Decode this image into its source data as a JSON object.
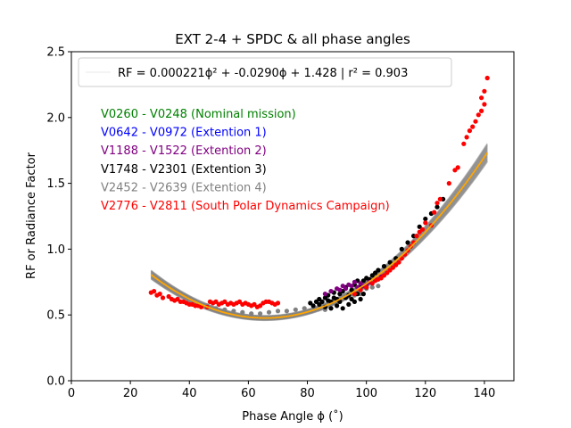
{
  "chart_data": {
    "type": "scatter",
    "title": "EXT 2-4 + SPDC & all phase angles",
    "xlabel": "Phase Angle ϕ (˚)",
    "ylabel": "RF or Radiance Factor",
    "xlim": [
      0,
      150
    ],
    "ylim": [
      0.0,
      2.5
    ],
    "xticks": [
      0,
      20,
      40,
      60,
      80,
      100,
      120,
      140
    ],
    "xtick_labels": [
      "0",
      "20",
      "40",
      "60",
      "80",
      "100",
      "120",
      "140"
    ],
    "yticks": [
      0.0,
      0.5,
      1.0,
      1.5,
      2.0,
      2.5
    ],
    "ytick_labels": [
      "0.0",
      "0.5",
      "1.0",
      "1.5",
      "2.0",
      "2.5"
    ],
    "grid": false,
    "legend": {
      "placement": "top",
      "text": "RF = 0.000221ϕ² + -0.0290ϕ +   1.428  |  r² = 0.903"
    },
    "fit": {
      "name": "RF = 0.000221ϕ² + -0.0290ϕ +   1.428",
      "coefficients": [
        0.000221,
        -0.029,
        1.428
      ],
      "r2": 0.903,
      "x_range": [
        27,
        141
      ],
      "color": "#ffa500",
      "band_color": "#808080"
    },
    "annotations": [
      {
        "text": "V0260 - V0248 (Nominal mission)",
        "color": "#008000"
      },
      {
        "text": "V0642 - V0972 (Extention 1)",
        "color": "#0000ff"
      },
      {
        "text": "V1188 - V1522 (Extention 2)",
        "color": "#800080"
      },
      {
        "text": "V1748 - V2301 (Extention 3)",
        "color": "#000000"
      },
      {
        "text": "V2452 - V2639 (Extention 4)",
        "color": "#808080"
      },
      {
        "text": "V2776 - V2811 (South Polar Dynamics Campaign)",
        "color": "#ff0000"
      }
    ],
    "series": [
      {
        "color": "#808080",
        "points": [
          [
            46,
            0.57
          ],
          [
            49,
            0.55
          ],
          [
            52,
            0.54
          ],
          [
            55,
            0.53
          ],
          [
            58,
            0.52
          ],
          [
            61,
            0.51
          ],
          [
            64,
            0.51
          ],
          [
            67,
            0.52
          ],
          [
            70,
            0.53
          ],
          [
            73,
            0.53
          ],
          [
            76,
            0.54
          ],
          [
            79,
            0.55
          ],
          [
            81,
            0.53
          ],
          [
            83,
            0.55
          ],
          [
            85,
            0.57
          ],
          [
            86,
            0.54
          ],
          [
            88,
            0.6
          ],
          [
            90,
            0.59
          ],
          [
            92,
            0.62
          ],
          [
            94,
            0.64
          ],
          [
            96,
            0.65
          ],
          [
            98,
            0.66
          ],
          [
            100,
            0.7
          ],
          [
            102,
            0.71
          ],
          [
            104,
            0.72
          ]
        ]
      },
      {
        "color": "#000000",
        "points": [
          [
            81,
            0.59
          ],
          [
            82,
            0.57
          ],
          [
            83,
            0.6
          ],
          [
            84,
            0.58
          ],
          [
            84,
            0.62
          ],
          [
            85,
            0.6
          ],
          [
            86,
            0.63
          ],
          [
            86,
            0.56
          ],
          [
            87,
            0.61
          ],
          [
            87,
            0.65
          ],
          [
            88,
            0.6
          ],
          [
            88,
            0.55
          ],
          [
            89,
            0.63
          ],
          [
            89,
            0.67
          ],
          [
            90,
            0.62
          ],
          [
            90,
            0.57
          ],
          [
            91,
            0.66
          ],
          [
            91,
            0.6
          ],
          [
            92,
            0.68
          ],
          [
            92,
            0.55
          ],
          [
            93,
            0.63
          ],
          [
            93,
            0.71
          ],
          [
            94,
            0.65
          ],
          [
            94,
            0.58
          ],
          [
            95,
            0.69
          ],
          [
            95,
            0.62
          ],
          [
            96,
            0.73
          ],
          [
            96,
            0.6
          ],
          [
            97,
            0.66
          ],
          [
            97,
            0.76
          ],
          [
            98,
            0.71
          ],
          [
            98,
            0.62
          ],
          [
            99,
            0.76
          ],
          [
            99,
            0.66
          ],
          [
            100,
            0.78
          ],
          [
            100,
            0.71
          ],
          [
            101,
            0.77
          ],
          [
            102,
            0.8
          ],
          [
            103,
            0.82
          ],
          [
            104,
            0.84
          ],
          [
            106,
            0.87
          ],
          [
            108,
            0.9
          ],
          [
            110,
            0.93
          ],
          [
            112,
            1.0
          ],
          [
            114,
            1.05
          ],
          [
            116,
            1.1
          ],
          [
            118,
            1.17
          ],
          [
            120,
            1.23
          ],
          [
            122,
            1.27
          ],
          [
            124,
            1.32
          ],
          [
            126,
            1.38
          ]
        ]
      },
      {
        "color": "#800080",
        "points": [
          [
            86,
            0.66
          ],
          [
            88,
            0.68
          ],
          [
            90,
            0.7
          ],
          [
            91,
            0.69
          ],
          [
            92,
            0.72
          ],
          [
            93,
            0.7
          ],
          [
            94,
            0.73
          ],
          [
            95,
            0.72
          ],
          [
            96,
            0.75
          ],
          [
            97,
            0.71
          ],
          [
            98,
            0.74
          ],
          [
            99,
            0.72
          ],
          [
            100,
            0.73
          ],
          [
            101,
            0.75
          ],
          [
            103,
            0.77
          ],
          [
            105,
            0.79
          ]
        ]
      },
      {
        "color": "#ff0000",
        "points": [
          [
            27,
            0.67
          ],
          [
            28,
            0.68
          ],
          [
            29,
            0.65
          ],
          [
            30,
            0.66
          ],
          [
            31,
            0.63
          ],
          [
            33,
            0.64
          ],
          [
            34,
            0.62
          ],
          [
            35,
            0.61
          ],
          [
            36,
            0.62
          ],
          [
            37,
            0.6
          ],
          [
            38,
            0.6
          ],
          [
            39,
            0.59
          ],
          [
            40,
            0.58
          ],
          [
            41,
            0.58
          ],
          [
            42,
            0.57
          ],
          [
            43,
            0.57
          ],
          [
            44,
            0.56
          ],
          [
            46,
            0.56
          ],
          [
            47,
            0.6
          ],
          [
            48,
            0.59
          ],
          [
            49,
            0.6
          ],
          [
            50,
            0.58
          ],
          [
            51,
            0.59
          ],
          [
            52,
            0.6
          ],
          [
            53,
            0.58
          ],
          [
            54,
            0.59
          ],
          [
            55,
            0.58
          ],
          [
            56,
            0.59
          ],
          [
            57,
            0.6
          ],
          [
            58,
            0.58
          ],
          [
            59,
            0.59
          ],
          [
            60,
            0.58
          ],
          [
            61,
            0.57
          ],
          [
            62,
            0.58
          ],
          [
            63,
            0.56
          ],
          [
            64,
            0.57
          ],
          [
            65,
            0.59
          ],
          [
            66,
            0.6
          ],
          [
            67,
            0.6
          ],
          [
            68,
            0.59
          ],
          [
            69,
            0.58
          ],
          [
            70,
            0.59
          ],
          [
            96,
            0.66
          ],
          [
            98,
            0.69
          ],
          [
            100,
            0.71
          ],
          [
            102,
            0.74
          ],
          [
            103,
            0.76
          ],
          [
            104,
            0.77
          ],
          [
            105,
            0.78
          ],
          [
            106,
            0.8
          ],
          [
            107,
            0.82
          ],
          [
            108,
            0.84
          ],
          [
            109,
            0.86
          ],
          [
            110,
            0.88
          ],
          [
            111,
            0.9
          ],
          [
            112,
            0.93
          ],
          [
            113,
            0.96
          ],
          [
            114,
            0.99
          ],
          [
            115,
            1.02
          ],
          [
            116,
            1.05
          ],
          [
            117,
            1.1
          ],
          [
            118,
            1.13
          ],
          [
            119,
            1.15
          ],
          [
            120,
            1.2
          ],
          [
            122,
            1.18
          ],
          [
            123,
            1.28
          ],
          [
            124,
            1.35
          ],
          [
            125,
            1.38
          ],
          [
            128,
            1.5
          ],
          [
            130,
            1.6
          ],
          [
            131,
            1.62
          ],
          [
            133,
            1.8
          ],
          [
            134,
            1.85
          ],
          [
            135,
            1.9
          ],
          [
            136,
            1.93
          ],
          [
            137,
            1.97
          ],
          [
            138,
            2.02
          ],
          [
            139,
            2.05
          ],
          [
            140,
            2.1
          ],
          [
            140,
            2.2
          ],
          [
            139,
            2.15
          ],
          [
            141,
            2.3
          ]
        ]
      }
    ]
  }
}
